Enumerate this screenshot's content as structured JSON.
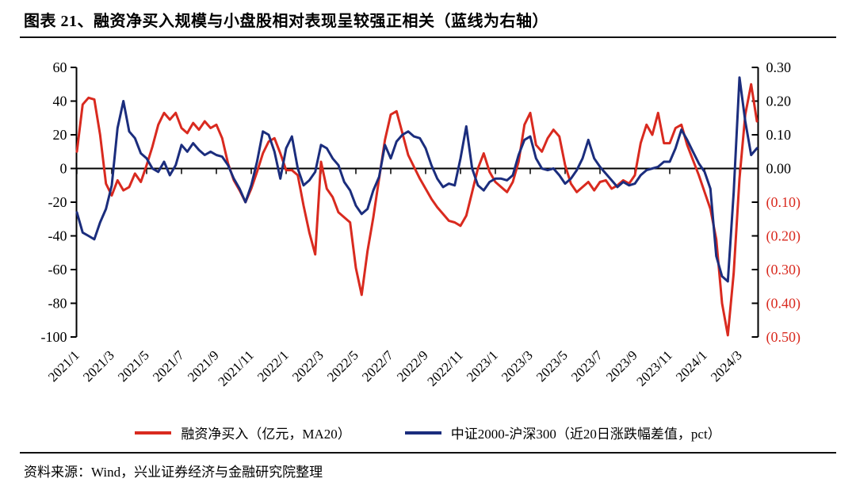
{
  "title": "图表 21、融资净买入规模与小盘股相对表现呈较强正相关（蓝线为右轴）",
  "source": "资料来源：Wind，兴业证券经济与金融研究院整理",
  "colors": {
    "red_line": "#d92a1f",
    "blue_line": "#1b2d7d",
    "axis_black": "#000000",
    "negative_tick_red": "#d92a1f",
    "background": "#ffffff"
  },
  "legend": {
    "items": [
      {
        "label": "融资净买入（亿元，MA20）",
        "color": "#d92a1f"
      },
      {
        "label": "中证2000-沪深300（近20日涨跌幅差值，pct）",
        "color": "#1b2d7d"
      }
    ]
  },
  "chart_data": {
    "type": "line",
    "title": "融资净买入规模与小盘股相对表现呈较强正相关（蓝线为右轴）",
    "grid": false,
    "legend_position": "bottom",
    "x": {
      "start": "2021-01",
      "end": "2024-04",
      "points_per_month": 3,
      "note": "each series sampled ~3 points per month (1st/11th/21st), Jan 2021 to Apr 2024",
      "tick_labels": [
        "2021/1",
        "2021/3",
        "2021/5",
        "2021/7",
        "2021/9",
        "2021/11",
        "2022/1",
        "2022/3",
        "2022/5",
        "2022/7",
        "2022/9",
        "2022/11",
        "2023/1",
        "2023/3",
        "2023/5",
        "2023/7",
        "2023/9",
        "2023/11",
        "2024/1",
        "2024/3"
      ],
      "tick_every_n_samples": 6
    },
    "left_axis": {
      "series": "融资净买入（亿元，MA20）",
      "range": [
        -100,
        60
      ],
      "ticks": [
        60,
        40,
        20,
        0,
        -20,
        -40,
        -60,
        -80,
        -100
      ]
    },
    "right_axis": {
      "series": "中证2000-沪深300（近20日涨跌幅差值，pct）",
      "range": [
        -0.5,
        0.3
      ],
      "ticks": [
        0.3,
        0.2,
        0.1,
        0.0,
        -0.1,
        -0.2,
        -0.3,
        -0.4,
        -0.5
      ],
      "tick_display": [
        "0.30",
        "0.20",
        "0.10",
        "0.00",
        "(0.10)",
        "(0.20)",
        "(0.30)",
        "(0.40)",
        "(0.50)"
      ]
    },
    "series": [
      {
        "name": "融资净买入（亿元，MA20）",
        "axis": "left",
        "color": "#d92a1f",
        "values": [
          10,
          38,
          42,
          41,
          20,
          -9,
          -16,
          -7,
          -13,
          -11,
          -3,
          -8,
          2,
          13,
          26,
          33,
          29,
          33,
          24,
          21,
          27,
          23,
          28,
          24,
          26,
          18,
          3,
          -7,
          -13,
          -20,
          -12,
          -2,
          9,
          16,
          18,
          9,
          -1,
          -1,
          -4,
          -22,
          -38,
          -51,
          4,
          -12,
          -17,
          -26,
          -29,
          -32,
          -59,
          -75,
          -49,
          -29,
          -6,
          17,
          32,
          34,
          21,
          8,
          1,
          -6,
          -12,
          -18,
          -23,
          -27,
          -31,
          -32,
          -34,
          -28,
          -14,
          0,
          9,
          -2,
          -8,
          -11,
          -14,
          -8,
          4,
          26,
          33,
          14,
          10,
          18,
          23,
          19,
          2,
          -9,
          -14,
          -11,
          -8,
          -13,
          -8,
          -7,
          -12,
          -10,
          -7,
          -9,
          -4,
          15,
          26,
          20,
          33,
          15,
          15,
          24,
          26,
          14,
          5,
          -4,
          -14,
          -24,
          -42,
          -80,
          -99,
          -62,
          -6,
          32,
          50,
          28
        ]
      },
      {
        "name": "中证2000-沪深300（近20日涨跌幅差值，pct）",
        "axis": "right",
        "color": "#1b2d7d",
        "values": [
          -0.13,
          -0.19,
          -0.2,
          -0.21,
          -0.16,
          -0.12,
          -0.05,
          0.12,
          0.2,
          0.11,
          0.09,
          0.045,
          0.03,
          0,
          -0.01,
          0.02,
          -0.02,
          0.01,
          0.07,
          0.05,
          0.075,
          0.055,
          0.04,
          0.05,
          0.04,
          0.035,
          0.01,
          -0.03,
          -0.06,
          -0.1,
          -0.05,
          0.02,
          0.11,
          0.1,
          0.05,
          -0.03,
          0.06,
          0.095,
          0,
          -0.05,
          -0.035,
          -0.01,
          0.07,
          0.06,
          0.03,
          0.01,
          -0.04,
          -0.065,
          -0.11,
          -0.135,
          -0.12,
          -0.065,
          -0.025,
          0.07,
          0.03,
          0.08,
          0.1,
          0.11,
          0.095,
          0.09,
          0.06,
          0.01,
          -0.03,
          -0.055,
          -0.045,
          -0.05,
          0.03,
          0.125,
          0,
          -0.05,
          -0.065,
          -0.04,
          -0.03,
          -0.03,
          -0.035,
          -0.02,
          0.04,
          0.085,
          0.095,
          0.03,
          0,
          -0.005,
          0,
          -0.02,
          -0.045,
          -0.03,
          -0.005,
          0.03,
          0.085,
          0.03,
          0.005,
          -0.015,
          -0.035,
          -0.055,
          -0.04,
          -0.05,
          -0.045,
          -0.02,
          -0.005,
          0,
          0.005,
          0.02,
          0.02,
          0.06,
          0.115,
          0.085,
          0.05,
          0.015,
          -0.01,
          -0.06,
          -0.26,
          -0.32,
          -0.335,
          -0.07,
          0.27,
          0.14,
          0.04,
          0.06
        ]
      }
    ]
  }
}
